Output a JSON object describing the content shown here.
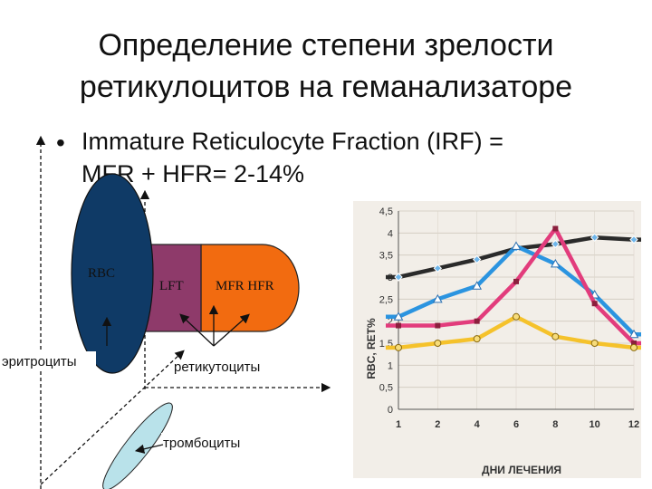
{
  "slide": {
    "title_line1": "Определение степени зрелости",
    "title_line2": "ретикулоцитов на геманализаторе",
    "bullet_line1": "Immature Reticulocyte Fraction (IRF) =",
    "bullet_line2": "MFR + HFR= 2-14%"
  },
  "diagram": {
    "rbc_label": "RBC",
    "lft_label": "LFT",
    "mfr_hfr_label": "MFR HFR",
    "erythrocytes_label": "эритроциты",
    "reticulocytes_label": "ретикутоциты",
    "platelets_label": "тромбоциты",
    "colors": {
      "rbc": "#0f3a66",
      "lft": "#8e3a6a",
      "mfr_hfr": "#f26b10",
      "platelets": "#b9e2ea"
    }
  },
  "chart_data": {
    "type": "line",
    "x": [
      1,
      2,
      4,
      6,
      8,
      10,
      12
    ],
    "x_tick_labels": [
      "1",
      "2",
      "4",
      "6",
      "8",
      "10",
      "12"
    ],
    "xlabel": "ДНИ ЛЕЧЕНИЯ",
    "ylabel": "RBC, RET%",
    "ylim": [
      0,
      4.5
    ],
    "y_ticks": [
      "0",
      "0,5",
      "1",
      "1,5",
      "2",
      "2,5",
      "3",
      "3,5",
      "4",
      "4,5"
    ],
    "y_tick_values": [
      0,
      0.5,
      1,
      1.5,
      2,
      2.5,
      3,
      3.5,
      4,
      4.5
    ],
    "grid": true,
    "series": [
      {
        "color": "#2a2a2a",
        "marker": "diamond",
        "values": [
          3.0,
          3.2,
          3.4,
          3.65,
          3.75,
          3.9,
          3.85
        ]
      },
      {
        "color": "#2b94e0",
        "marker": "triangle",
        "values": [
          2.1,
          2.5,
          2.8,
          3.7,
          3.3,
          2.6,
          1.7
        ]
      },
      {
        "color": "#e23c7c",
        "marker": "square",
        "values": [
          1.9,
          1.9,
          2.0,
          2.9,
          4.1,
          2.4,
          1.5
        ]
      },
      {
        "color": "#f5c22b",
        "marker": "circle",
        "values": [
          1.4,
          1.5,
          1.6,
          2.1,
          1.65,
          1.5,
          1.4
        ]
      }
    ]
  }
}
